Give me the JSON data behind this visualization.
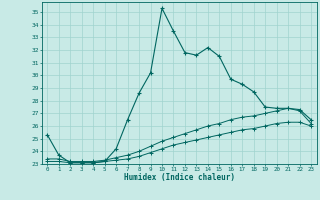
{
  "xlabel": "Humidex (Indice chaleur)",
  "background_color": "#c8eae6",
  "grid_color": "#a0d4ce",
  "line_color": "#006660",
  "xlim": [
    -0.5,
    23.5
  ],
  "ylim": [
    23,
    35.8
  ],
  "yticks": [
    23,
    24,
    25,
    26,
    27,
    28,
    29,
    30,
    31,
    32,
    33,
    34,
    35
  ],
  "xticks": [
    0,
    1,
    2,
    3,
    4,
    5,
    6,
    7,
    8,
    9,
    10,
    11,
    12,
    13,
    14,
    15,
    16,
    17,
    18,
    19,
    20,
    21,
    22,
    23
  ],
  "main_line": {
    "x": [
      0,
      1,
      2,
      3,
      4,
      5,
      6,
      7,
      8,
      9,
      10,
      11,
      12,
      13,
      14,
      15,
      16,
      17,
      18,
      19,
      20,
      21,
      22,
      23
    ],
    "y": [
      25.3,
      23.7,
      23.1,
      23.1,
      23.1,
      23.2,
      24.2,
      26.5,
      28.6,
      30.2,
      35.3,
      33.5,
      31.8,
      31.6,
      32.2,
      31.5,
      29.7,
      29.3,
      28.7,
      27.5,
      27.4,
      27.4,
      27.3,
      26.5
    ]
  },
  "line2": {
    "x": [
      0,
      1,
      2,
      3,
      4,
      5,
      6,
      7,
      8,
      9,
      10,
      11,
      12,
      13,
      14,
      15,
      16,
      17,
      18,
      19,
      20,
      21,
      22,
      23
    ],
    "y": [
      23.4,
      23.4,
      23.2,
      23.2,
      23.2,
      23.3,
      23.5,
      23.7,
      24.0,
      24.4,
      24.8,
      25.1,
      25.4,
      25.7,
      26.0,
      26.2,
      26.5,
      26.7,
      26.8,
      27.0,
      27.2,
      27.4,
      27.2,
      26.2
    ]
  },
  "line3": {
    "x": [
      0,
      1,
      2,
      3,
      4,
      5,
      6,
      7,
      8,
      9,
      10,
      11,
      12,
      13,
      14,
      15,
      16,
      17,
      18,
      19,
      20,
      21,
      22,
      23
    ],
    "y": [
      23.2,
      23.2,
      23.1,
      23.1,
      23.1,
      23.2,
      23.3,
      23.4,
      23.6,
      23.9,
      24.2,
      24.5,
      24.7,
      24.9,
      25.1,
      25.3,
      25.5,
      25.7,
      25.8,
      26.0,
      26.2,
      26.3,
      26.3,
      26.0
    ]
  }
}
